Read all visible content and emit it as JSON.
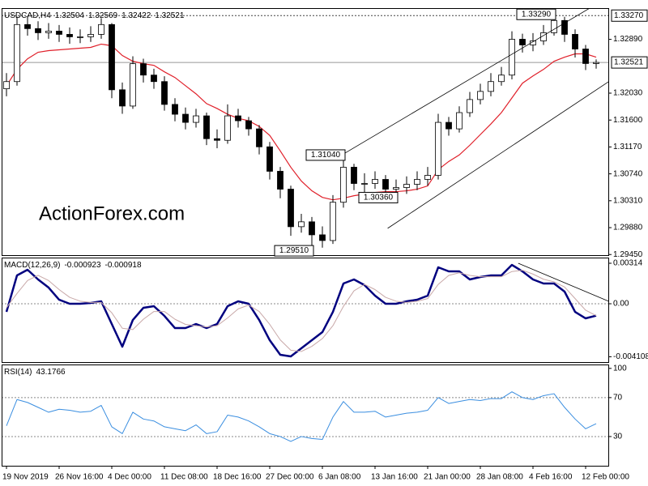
{
  "chart_data": [
    {
      "type": "candlestick",
      "title": "USDCAD,H4",
      "categories": [
        "19 Nov 2019",
        null,
        null,
        null,
        null,
        "26 Nov 16:00",
        null,
        null,
        null,
        null,
        "4 Dec 00:00",
        null,
        null,
        null,
        null,
        "11 Dec 08:00",
        null,
        null,
        null,
        null,
        "18 Dec 16:00",
        null,
        null,
        null,
        null,
        "27 Dec 00:00",
        null,
        null,
        null,
        null,
        "6 Jan 08:00",
        null,
        null,
        null,
        null,
        "13 Jan 16:00",
        null,
        null,
        null,
        null,
        "21 Jan 00:00",
        null,
        null,
        null,
        null,
        "28 Jan 08:00",
        null,
        null,
        null,
        null,
        "4 Feb 16:00",
        null,
        null,
        null,
        null,
        "12 Feb 00:00",
        null
      ],
      "open": [
        1.321,
        1.32215,
        1.33127,
        1.33062,
        1.32996,
        1.33022,
        1.3297,
        1.32931,
        1.32931,
        1.3297,
        1.33127,
        1.32084,
        1.31824,
        1.32501,
        1.32319,
        1.32215,
        1.3185,
        1.31693,
        1.31563,
        1.31667,
        1.31302,
        1.31276,
        1.31667,
        1.31589,
        1.31459,
        1.31172,
        1.30781,
        1.30495,
        1.29895,
        1.29973,
        1.29765,
        1.29674,
        1.30286,
        1.30846,
        1.30586,
        1.30586,
        1.30651,
        1.30495,
        1.30521,
        1.30573,
        1.30651,
        1.30716,
        1.31563,
        1.31459,
        1.31719,
        1.31928,
        1.32058,
        1.32215,
        1.32319,
        1.32892,
        1.32801,
        1.32866,
        1.32996,
        1.33192,
        1.3297,
        1.32736,
        1.32504
      ],
      "high": [
        1.3235,
        1.3325,
        1.3326,
        1.3318,
        1.3315,
        1.3312,
        1.3308,
        1.3305,
        1.331,
        1.3323,
        1.3315,
        1.322,
        1.3262,
        1.3258,
        1.3242,
        1.323,
        1.3195,
        1.318,
        1.3178,
        1.3172,
        1.3145,
        1.3185,
        1.3178,
        1.3165,
        1.3152,
        1.3125,
        1.3085,
        1.3055,
        1.301,
        1.3005,
        1.299,
        1.304,
        1.3104,
        1.309,
        1.3075,
        1.3078,
        1.3072,
        1.3065,
        1.307,
        1.3078,
        1.3085,
        1.317,
        1.3165,
        1.3182,
        1.3205,
        1.3218,
        1.3235,
        1.3245,
        1.3302,
        1.3298,
        1.3299,
        1.3312,
        1.3329,
        1.3325,
        1.3305,
        1.328,
        1.32569
      ],
      "low": [
        1.3198,
        1.3215,
        1.3295,
        1.3288,
        1.329,
        1.3285,
        1.3282,
        1.3283,
        1.3285,
        1.329,
        1.3195,
        1.317,
        1.3178,
        1.322,
        1.321,
        1.3175,
        1.3158,
        1.3145,
        1.3148,
        1.312,
        1.3115,
        1.3122,
        1.3148,
        1.3135,
        1.3105,
        1.3065,
        1.3035,
        1.2975,
        1.298,
        1.2951,
        1.2956,
        1.2962,
        1.302,
        1.3048,
        1.3045,
        1.305,
        1.3038,
        1.3036,
        1.3042,
        1.3048,
        1.3055,
        1.3065,
        1.3135,
        1.314,
        1.3165,
        1.3185,
        1.3198,
        1.3215,
        1.3225,
        1.3268,
        1.327,
        1.328,
        1.3295,
        1.3285,
        1.326,
        1.324,
        1.32422
      ],
      "close": [
        1.32215,
        1.33127,
        1.33062,
        1.32996,
        1.33022,
        1.3297,
        1.32931,
        1.32931,
        1.3297,
        1.33127,
        1.32084,
        1.31824,
        1.32501,
        1.32319,
        1.32215,
        1.3185,
        1.31693,
        1.31563,
        1.31667,
        1.31302,
        1.31276,
        1.31667,
        1.31589,
        1.31459,
        1.31172,
        1.30781,
        1.30495,
        1.29895,
        1.29973,
        1.29765,
        1.29674,
        1.30286,
        1.30846,
        1.30586,
        1.30586,
        1.30651,
        1.30495,
        1.30521,
        1.30573,
        1.30651,
        1.30716,
        1.31563,
        1.31459,
        1.31719,
        1.31928,
        1.32058,
        1.32215,
        1.32319,
        1.32892,
        1.32801,
        1.32866,
        1.32996,
        1.33192,
        1.3297,
        1.32736,
        1.32504,
        1.32521
      ],
      "up_color": "#ffffff",
      "down_color": "#000000",
      "ma": {
        "color": "#e0202a",
        "values": [
          1.32149,
          1.3241,
          1.32579,
          1.32684,
          1.3271,
          1.32723,
          1.32736,
          1.32749,
          1.32762,
          1.32814,
          1.32788,
          1.32632,
          1.3254,
          1.32501,
          1.32475,
          1.32371,
          1.3228,
          1.32149,
          1.32019,
          1.31863,
          1.31785,
          1.31693,
          1.31628,
          1.31589,
          1.31498,
          1.31355,
          1.31107,
          1.30846,
          1.30625,
          1.30469,
          1.30364,
          1.30325,
          1.30351,
          1.3039,
          1.30416,
          1.30443,
          1.30456,
          1.30456,
          1.30469,
          1.30495,
          1.30547,
          1.30807,
          1.30938,
          1.31042,
          1.31198,
          1.31368,
          1.31537,
          1.31719,
          1.31954,
          1.32189,
          1.32306,
          1.3241,
          1.3254,
          1.32606,
          1.32658,
          1.32658,
          1.32606
        ]
      },
      "ylim": [
        1.2944,
        1.3339
      ],
      "yticks": [
        {
          "value": 1.3289,
          "label": "1.32890"
        },
        {
          "value": 1.3203,
          "label": "1.32030"
        },
        {
          "value": 1.316,
          "label": "1.31600"
        },
        {
          "value": 1.3117,
          "label": "1.31170"
        },
        {
          "value": 1.3074,
          "label": "1.30740"
        },
        {
          "value": 1.3031,
          "label": "1.30310"
        },
        {
          "value": 1.2988,
          "label": "1.29880"
        },
        {
          "value": 1.2945,
          "label": "1.29450"
        }
      ],
      "hlines": [
        {
          "value": 1.3327,
          "label": "1.33270"
        }
      ],
      "annotations": [
        {
          "x": 32,
          "value": 1.3104,
          "label": "1.31040"
        },
        {
          "x": 29,
          "value": 1.2951,
          "label": "1.29510"
        },
        {
          "x": 37,
          "value": 1.3036,
          "label": "1.30360"
        },
        {
          "x": 52,
          "value": 1.3329,
          "label": "1.33290"
        }
      ],
      "trendlines": [
        {
          "x": [
            31.85,
            56.15
          ],
          "y": [
            1.31042,
            1.33465
          ]
        },
        {
          "x": [
            36.2,
            57.2
          ],
          "y": [
            1.29869,
            1.32215
          ]
        }
      ],
      "watermark": "ActionForex.com"
    },
    {
      "type": "line",
      "title": "MACD(12,26,9)",
      "series": [
        {
          "color": "#00007f",
          "width": 2.5,
          "values": [
            -0.000628,
            0.002198,
            0.002638,
            0.001884,
            0.001256,
            0.000314,
            0,
            0,
            6.3e-05,
            0.000188,
            -0.00157,
            -0.003328,
            -0.001256,
            -0.000314,
            -0.000188,
            -0.000942,
            -0.001884,
            -0.001884,
            -0.00157,
            -0.001884,
            -0.00157,
            -0.000188,
            0.000188,
            0,
            -0.001256,
            -0.002826,
            -0.003956,
            -0.004082,
            -0.003454,
            -0.002826,
            -0.002198,
            -0.000628,
            0.00157,
            0.001884,
            0.001444,
            0.000628,
            0,
            0,
            0.000188,
            0.000314,
            0.000628,
            0.002826,
            0.002512,
            0.002512,
            0.001884,
            0.002072,
            0.002198,
            0.002198,
            0.003014,
            0.002512,
            0.001884,
            0.00157,
            0.00157,
            0.000942,
            -0.000628,
            -0.00113,
            -0.000923
          ]
        },
        {
          "color": "#c8a8a8",
          "width": 1,
          "values": [
            -0.0003,
            0.0008,
            0.0018,
            0.0022,
            0.0018,
            0.0011,
            0.0005,
            0.0002,
            0.0001,
            0.0001,
            -0.0007,
            -0.0019,
            -0.002,
            -0.0012,
            -0.0006,
            -0.0006,
            -0.0012,
            -0.0016,
            -0.0017,
            -0.0018,
            -0.0017,
            -0.0011,
            -0.0004,
            -0.0001,
            -0.0006,
            -0.0016,
            -0.0028,
            -0.0036,
            -0.0037,
            -0.0033,
            -0.0027,
            -0.0017,
            -0.0002,
            0.001,
            0.0015,
            0.0011,
            0.0005,
            0.0002,
            0.0001,
            0.0002,
            0.0004,
            0.0015,
            0.0022,
            0.0024,
            0.0022,
            0.0021,
            0.0021,
            0.0021,
            0.0025,
            0.0026,
            0.0023,
            0.0019,
            0.0017,
            0.0013,
            0.0004,
            -0.0005,
            -0.000918
          ]
        }
      ],
      "ylim": [
        -0.00452,
        0.00358
      ],
      "yticks": [
        0.00314,
        {
          "value": 0,
          "label": "0.00"
        },
        -0.004108
      ],
      "levels": [
        0
      ],
      "trendlines": [
        {
          "x": [
            48.6,
            57.2
          ],
          "y": [
            0.00314,
            0.000188
          ]
        }
      ]
    },
    {
      "type": "line",
      "title": "RSI(14)",
      "series": [
        {
          "color": "#3a8ee0",
          "width": 1,
          "values": [
            41,
            68,
            65,
            60,
            55,
            58,
            57,
            55,
            56,
            62,
            40,
            33,
            55,
            48,
            46,
            40,
            38,
            36,
            42,
            33,
            35,
            52,
            50,
            46,
            40,
            33,
            30,
            25,
            30,
            28,
            27,
            50,
            66,
            55,
            55,
            56,
            50,
            52,
            54,
            55,
            57,
            70,
            64,
            66,
            68,
            67,
            69,
            69,
            76,
            70,
            68,
            72,
            74,
            60,
            48,
            38,
            43.1766
          ]
        }
      ],
      "ylim": [
        0,
        104
      ],
      "yticks": [
        100,
        70,
        30
      ],
      "levels": [
        70,
        30
      ]
    }
  ]
}
